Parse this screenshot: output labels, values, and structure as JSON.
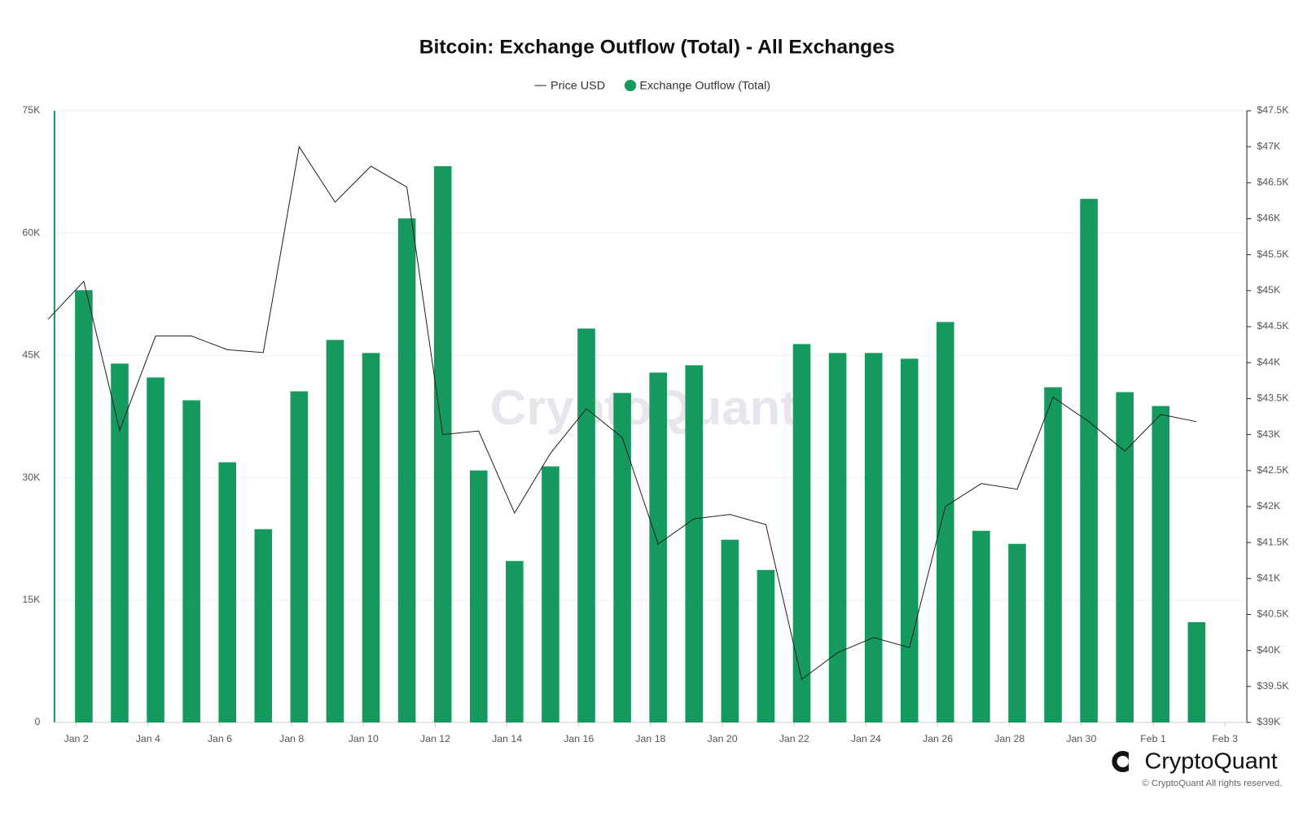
{
  "chart_data": {
    "type": "bar_line",
    "title": "Bitcoin: Exchange Outflow (Total) - All Exchanges",
    "categories": [
      null,
      "Jan 2",
      null,
      "Jan 4",
      null,
      "Jan 6",
      null,
      "Jan 8",
      null,
      "Jan 10",
      null,
      "Jan 12",
      null,
      "Jan 14",
      null,
      "Jan 16",
      null,
      "Jan 18",
      null,
      "Jan 20",
      null,
      "Jan 22",
      null,
      "Jan 24",
      null,
      "Jan 26",
      null,
      "Jan 28",
      null,
      "Jan 30",
      null,
      "Feb 1",
      null,
      "Feb 3"
    ],
    "series": [
      {
        "name": "Price USD",
        "color": "#222222",
        "axis": "y2",
        "kind": "line",
        "values": [
          44600,
          45130,
          43060,
          44370,
          44370,
          44180,
          44140,
          47000,
          46230,
          46730,
          46440,
          43000,
          43050,
          41910,
          42740,
          43360,
          42960,
          41480,
          41830,
          41890,
          41750,
          39600,
          39970,
          40180,
          40040,
          42000,
          42320,
          42240,
          43520,
          43180,
          42770,
          43280,
          43180,
          null
        ]
      },
      {
        "name": "Exchange Outflow (Total)",
        "color": "#15995e",
        "kind": "bar",
        "values": [
          null,
          53000,
          44000,
          42300,
          39500,
          31900,
          23700,
          40600,
          46900,
          45300,
          61800,
          68200,
          30900,
          19800,
          31400,
          48300,
          40400,
          42900,
          43800,
          22400,
          18700,
          46400,
          45300,
          45300,
          44600,
          49100,
          23500,
          21900,
          41100,
          64200,
          40500,
          38800,
          12300,
          null
        ]
      }
    ],
    "ylim": [
      0,
      75000
    ],
    "yticks": [
      0,
      {
        "value": 15000,
        "label": "15K"
      },
      {
        "value": 30000,
        "label": "30K"
      },
      {
        "value": 45000,
        "label": "45K"
      },
      {
        "value": 60000,
        "label": "60K"
      },
      {
        "value": 75000,
        "label": "75K"
      }
    ],
    "y2lim": [
      39000,
      47500
    ],
    "y2ticks": [
      {
        "value": 39000,
        "label": "$39K"
      },
      {
        "value": 39500,
        "label": "$39.5K"
      },
      {
        "value": 40000,
        "label": "$40K"
      },
      {
        "value": 40500,
        "label": "$40.5K"
      },
      {
        "value": 41000,
        "label": "$41K"
      },
      {
        "value": 41500,
        "label": "$41.5K"
      },
      {
        "value": 42000,
        "label": "$42K"
      },
      {
        "value": 42500,
        "label": "$42.5K"
      },
      {
        "value": 43000,
        "label": "$43K"
      },
      {
        "value": 43500,
        "label": "$43.5K"
      },
      {
        "value": 44000,
        "label": "$44K"
      },
      {
        "value": 44500,
        "label": "$44.5K"
      },
      {
        "value": 45000,
        "label": "$45K"
      },
      {
        "value": 45500,
        "label": "$45.5K"
      },
      {
        "value": 46000,
        "label": "$46K"
      },
      {
        "value": 46500,
        "label": "$46.5K"
      },
      {
        "value": 47000,
        "label": "$47K"
      },
      {
        "value": 47500,
        "label": "$47.5K"
      }
    ],
    "grid": true,
    "legend": "top"
  },
  "branding": {
    "watermark": "CryptoQuant",
    "logo": "CryptoQuant",
    "copyright": "© CryptoQuant All rights reserved."
  }
}
